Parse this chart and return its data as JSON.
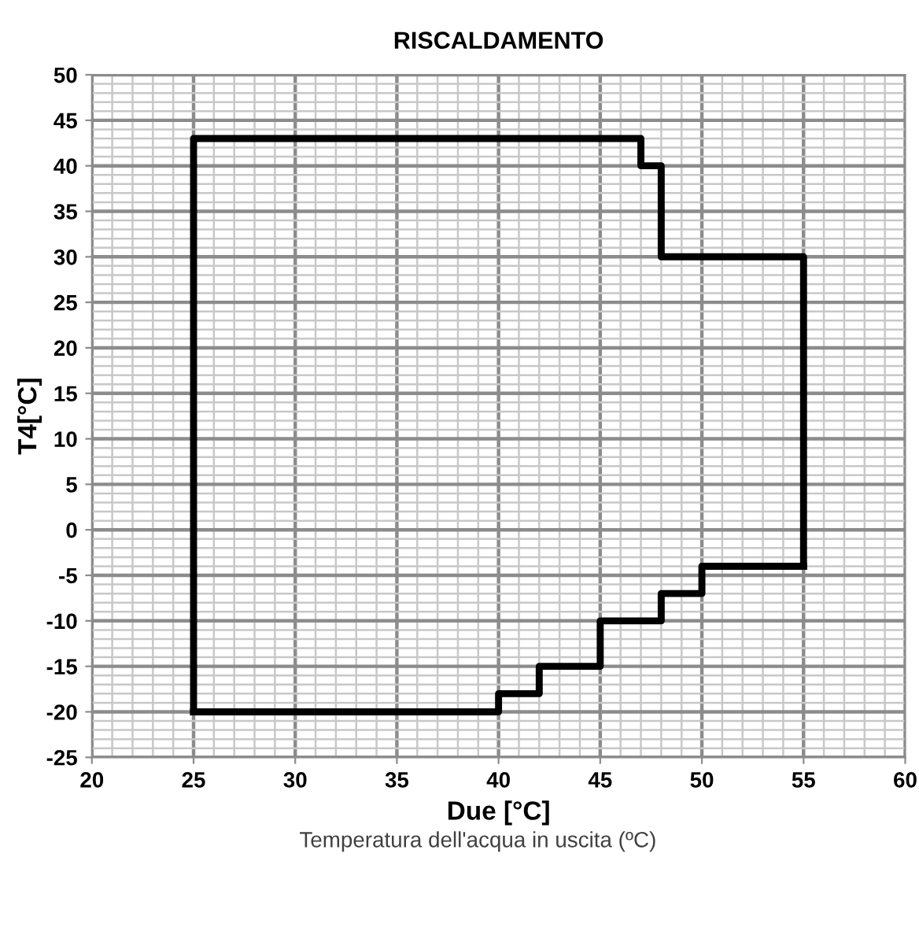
{
  "chart_data": {
    "type": "line",
    "title": "RISCALDAMENTO",
    "xlabel": "Due [°C]",
    "ylabel": "T4[°C]",
    "annotations": [
      "Temperatura dell'acqua in uscita (ºC)"
    ],
    "series": [
      {
        "color": "#000000",
        "x": [
          25,
          40,
          40,
          42,
          42,
          45,
          45,
          48,
          48,
          50,
          50,
          55
        ],
        "values": [
          -20,
          -20,
          -18,
          -18,
          -15,
          -15,
          -10,
          -10,
          -7,
          -7,
          -4,
          -4
        ]
      },
      {
        "color": "#000000",
        "x": [
          25,
          25,
          47,
          47,
          48,
          48,
          55,
          55
        ],
        "values": [
          -20,
          43,
          43,
          40,
          40,
          30,
          30,
          -4
        ]
      }
    ],
    "xlim": [
      20,
      60
    ],
    "xticks": [
      20,
      25,
      30,
      35,
      40,
      45,
      50,
      55,
      60
    ],
    "ylim": [
      -25,
      50
    ],
    "yticks": [
      -25,
      -20,
      -15,
      -10,
      -5,
      0,
      5,
      10,
      15,
      20,
      25,
      30,
      35,
      40,
      45,
      50
    ],
    "grid": true,
    "marker": "none",
    "line_style": "solid"
  }
}
